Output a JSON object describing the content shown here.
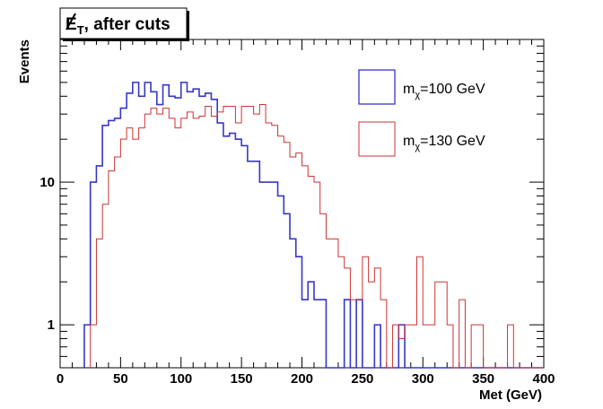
{
  "chart_data": {
    "type": "histogram",
    "title_main": "E",
    "title_sub": "T",
    "title_rest": ", after cuts",
    "xlabel": "Met (GeV)",
    "ylabel": "Events",
    "xlim": [
      0,
      400
    ],
    "ylim": [
      0.5,
      100
    ],
    "ylog": true,
    "bin_width": 5,
    "x_ticks": [
      {
        "value": 0,
        "label": "0"
      },
      {
        "value": 50,
        "label": "50"
      },
      {
        "value": 100,
        "label": "100"
      },
      {
        "value": 150,
        "label": "150"
      },
      {
        "value": 200,
        "label": "200"
      },
      {
        "value": 250,
        "label": "250"
      },
      {
        "value": 300,
        "label": "300"
      },
      {
        "value": 350,
        "label": "350"
      },
      {
        "value": 400,
        "label": "400"
      }
    ],
    "y_ticks": [
      {
        "value": 1,
        "label": "1"
      },
      {
        "value": 10,
        "label": "10"
      }
    ],
    "series": [
      {
        "name_main": "m",
        "name_sub": "χ",
        "name_rest": "=100 GeV",
        "color": "#3636c8",
        "edges_start": 20,
        "values": [
          1,
          10,
          13,
          25,
          27,
          28,
          33,
          42,
          50,
          40,
          50,
          43,
          35,
          48,
          40,
          39,
          50,
          43,
          45,
          40,
          42,
          38,
          26,
          21,
          22,
          20,
          18,
          14,
          14,
          10,
          10,
          10,
          8,
          6,
          4,
          3,
          1.5,
          2,
          1.5,
          1.5,
          0.5,
          0,
          0.5,
          1.5,
          0.5,
          1.5,
          0,
          0.5,
          1,
          0,
          0.5,
          0,
          1,
          0,
          0,
          0,
          0,
          0,
          0,
          0,
          0,
          0,
          0,
          0,
          0,
          0,
          0,
          0,
          0,
          0,
          0,
          0,
          0,
          0,
          0,
          0
        ]
      },
      {
        "name_main": "m",
        "name_sub": "χ",
        "name_rest": "=130 GeV",
        "color": "#cc3333",
        "edges_start": 25,
        "values": [
          1,
          4,
          7,
          12,
          15,
          20,
          24,
          20,
          24,
          30,
          33,
          30,
          33,
          28,
          24,
          28,
          31,
          28,
          29,
          34,
          29,
          31,
          34,
          34,
          26,
          34,
          34,
          30,
          35,
          26,
          25,
          21,
          19,
          15,
          16,
          13,
          11,
          10,
          6,
          4,
          4,
          3,
          2.5,
          1.5,
          1.5,
          3,
          2,
          2.5,
          1.5,
          0.5,
          1,
          0.8,
          1,
          1,
          3,
          1,
          1,
          2,
          2,
          1,
          0.5,
          1.5,
          0,
          1,
          1,
          0,
          0,
          0,
          0,
          1,
          0,
          0,
          0,
          0,
          0
        ]
      }
    ]
  }
}
